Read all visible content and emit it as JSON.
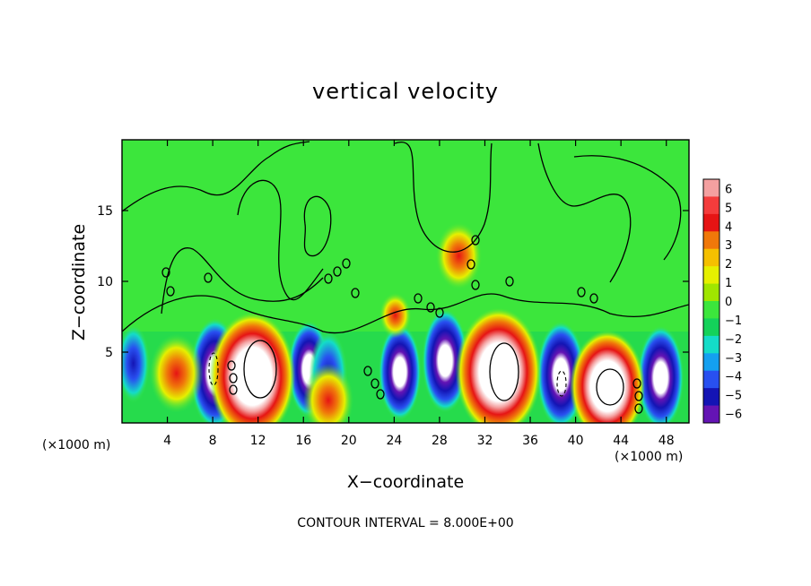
{
  "chart_data": {
    "type": "heatmap",
    "title": "vertical velocity",
    "xlabel": "X−coordinate",
    "ylabel": "Z−coordinate",
    "x_unit_left": "(×1000 m)",
    "x_unit_right": "(×1000 m)",
    "footer": "CONTOUR INTERVAL = 8.000E+00",
    "xlim": [
      0,
      50
    ],
    "ylim": [
      0,
      20
    ],
    "x_ticks": [
      4,
      8,
      12,
      16,
      20,
      24,
      28,
      32,
      36,
      40,
      44,
      48
    ],
    "y_ticks": [
      5,
      10,
      15
    ],
    "colorbar": {
      "labels": [
        "6",
        "5",
        "4",
        "3",
        "2",
        "1",
        "0",
        "−1",
        "−2",
        "−3",
        "−4",
        "−5",
        "−6"
      ],
      "colors": [
        "#f4a0a0",
        "#f43c3c",
        "#e61414",
        "#f0780a",
        "#f5c000",
        "#e6f000",
        "#a0e600",
        "#3ce63c",
        "#14d25a",
        "#14dcc8",
        "#14a0f0",
        "#2850f0",
        "#1414b4",
        "#6414b4"
      ],
      "range": [
        -6,
        6
      ]
    },
    "updrafts": [
      {
        "x": 11.5,
        "z": 3.3,
        "strength": 1.0
      },
      {
        "x": 33.2,
        "z": 3.6,
        "strength": 1.0
      },
      {
        "x": 42.8,
        "z": 2.6,
        "strength": 0.85
      },
      {
        "x": 4.8,
        "z": 3.5,
        "strength": 0.55
      },
      {
        "x": 18.2,
        "z": 1.6,
        "strength": 0.5
      },
      {
        "x": 29.7,
        "z": 11.8,
        "strength": 0.45
      },
      {
        "x": 24.1,
        "z": 7.6,
        "strength": 0.25
      }
    ],
    "downdrafts": [
      {
        "x": 8.2,
        "z": 3.5,
        "strength": 1.0
      },
      {
        "x": 16.5,
        "z": 3.8,
        "strength": 0.8
      },
      {
        "x": 18.2,
        "z": 3.4,
        "strength": 0.7
      },
      {
        "x": 24.5,
        "z": 3.6,
        "strength": 0.8
      },
      {
        "x": 28.5,
        "z": 4.4,
        "strength": 0.9
      },
      {
        "x": 38.7,
        "z": 3.4,
        "strength": 0.95
      },
      {
        "x": 47.5,
        "z": 3.2,
        "strength": 0.9
      },
      {
        "x": 1.0,
        "z": 4.2,
        "strength": 0.55
      }
    ]
  }
}
